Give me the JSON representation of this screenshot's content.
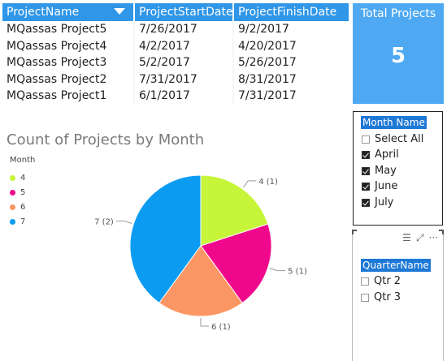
{
  "table": {
    "columns": [
      "ProjectName",
      "ProjectStartDate",
      "ProjectFinishDate"
    ],
    "rows": [
      [
        "MQassas Project5",
        "7/26/2017",
        "9/2/2017"
      ],
      [
        "MQassas Project4",
        "4/2/2017",
        "4/20/2017"
      ],
      [
        "MQassas Project3",
        "5/2/2017",
        "5/26/2017"
      ],
      [
        "MQassas Project2",
        "7/31/2017",
        "8/31/2017"
      ],
      [
        "MQassas Project1",
        "6/1/2017",
        "7/31/2017"
      ]
    ]
  },
  "card": {
    "title": "Total Projects",
    "value": "5"
  },
  "chart_data": {
    "type": "pie",
    "title": "Count of Projects by Month",
    "legend_title": "Month",
    "legend_position": "left",
    "categories": [
      "4",
      "5",
      "6",
      "7"
    ],
    "values": [
      1,
      1,
      1,
      2
    ],
    "colors": [
      "#c6f53a",
      "#f0088c",
      "#fc9664",
      "#0b9cf2"
    ],
    "data_labels": [
      "4 (1)",
      "5 (1)",
      "6 (1)",
      "7 (2)"
    ]
  },
  "month_slicer": {
    "header": "Month Name",
    "select_all": "Select All",
    "items": [
      {
        "label": "April",
        "checked": true
      },
      {
        "label": "May",
        "checked": true
      },
      {
        "label": "June",
        "checked": true
      },
      {
        "label": "July",
        "checked": true
      }
    ]
  },
  "quarter_slicer": {
    "header": "QuarterName",
    "items": [
      {
        "label": "Qtr 2",
        "checked": false
      },
      {
        "label": "Qtr 3",
        "checked": false
      }
    ],
    "icons": [
      "hamburger-icon",
      "focus-mode-icon",
      "more-options-icon"
    ]
  }
}
